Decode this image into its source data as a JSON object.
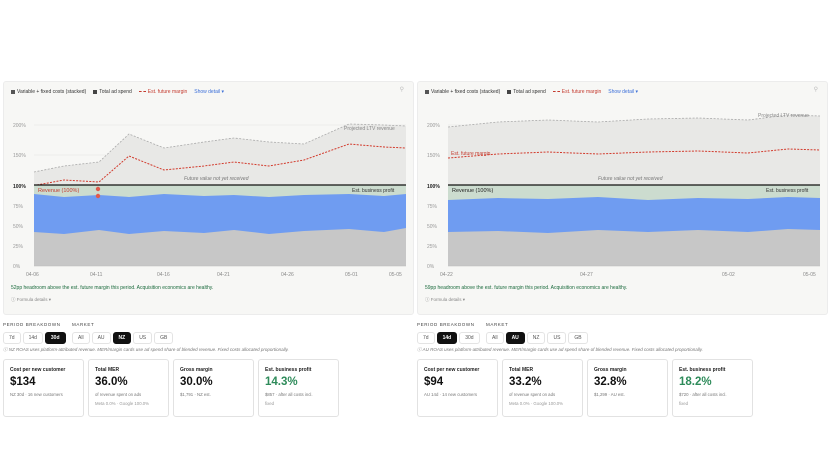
{
  "legend": {
    "stacked": "Variable + fixed costs (stacked)",
    "adspend": "Total ad spend",
    "margin": "Est. future margin",
    "show_detail": "Show detail ▾"
  },
  "colors": {
    "revenue": "#ccdccf",
    "adspend": "#6f9cf1",
    "costs": "#c7c7c7",
    "margin_line": "#d23a2c",
    "band": "#d9d9d9"
  },
  "left": {
    "y_ticks_upper": [
      "200%",
      "150%"
    ],
    "y_ticks_lower": [
      "100%",
      "75%",
      "50%",
      "25%",
      "0%"
    ],
    "x_ticks": [
      "04-06",
      "04-11",
      "04-16",
      "04-21",
      "04-26",
      "05-01",
      "05-05"
    ],
    "labels": {
      "projected": "Projected LTV revenue",
      "future_note": "Future value not yet received",
      "revenue": "Revenue (100%)",
      "est_profit": "Est. business profit"
    },
    "headroom": "52pp headroom above the est. future margin this period. Acquisition economics are healthy.",
    "formula": "ⓘ Formula details ▾"
  },
  "right": {
    "y_ticks_upper": [
      "200%",
      "150%"
    ],
    "y_ticks_lower": [
      "100%",
      "75%",
      "50%",
      "25%",
      "0%"
    ],
    "x_ticks": [
      "04-22",
      "04-27",
      "05-02",
      "05-05"
    ],
    "labels": {
      "projected": "Projected LTV revenue",
      "future_margin": "Est. future margin",
      "future_note": "Future value not yet received",
      "revenue": "Revenue (100%)",
      "est_profit": "Est. business profit"
    },
    "headroom": "59pp headroom above the est. future margin this period. Acquisition economics are healthy.",
    "formula": "ⓘ Formula details ▾"
  },
  "controls_left": {
    "period_label": "PERIOD BREAKDOWN",
    "market_label": "MARKET",
    "periods": [
      "7d",
      "14d",
      "30d"
    ],
    "markets": [
      "All",
      "AU",
      "NZ",
      "US",
      "GB"
    ],
    "note": "ⓘ NZ ROAS uses platform-attributed revenue. MER/margin cards use ad spend share of blended revenue. Fixed costs allocated proportionally.",
    "cards": [
      {
        "title": "Cost per new customer",
        "value": "$134",
        "sub": "NZ 30d · 16 new customers",
        "sub2": ""
      },
      {
        "title": "Total MER",
        "value": "36.0%",
        "sub": "of revenue spent on ads",
        "sub2": "Meta 0.0% · Google 100.0%"
      },
      {
        "title": "Gross margin",
        "value": "30.0%",
        "sub": "$1,791 · NZ est.",
        "sub2": ""
      },
      {
        "title": "Est. business profit",
        "value": "14.3%",
        "sub": "$857 · after all costs incl.",
        "sub2": "fixed"
      }
    ]
  },
  "controls_right": {
    "period_label": "PERIOD BREAKDOWN",
    "market_label": "MARKET",
    "periods": [
      "7d",
      "14d",
      "30d"
    ],
    "markets": [
      "All",
      "AU",
      "NZ",
      "US",
      "GB"
    ],
    "note": "ⓘ AU ROAS uses platform-attributed revenue. MER/margin cards use ad spend share of blended revenue. Fixed costs allocated proportionally.",
    "cards": [
      {
        "title": "Cost per new customer",
        "value": "$94",
        "sub": "AU 14d · 14 new customers",
        "sub2": ""
      },
      {
        "title": "Total MER",
        "value": "33.2%",
        "sub": "of revenue spent on ads",
        "sub2": "Meta 0.0% · Google 100.0%"
      },
      {
        "title": "Gross margin",
        "value": "32.8%",
        "sub": "$1,299 · AU est.",
        "sub2": ""
      },
      {
        "title": "Est. business profit",
        "value": "18.2%",
        "sub": "$720 · after all costs incl.",
        "sub2": "fixed"
      }
    ]
  }
}
